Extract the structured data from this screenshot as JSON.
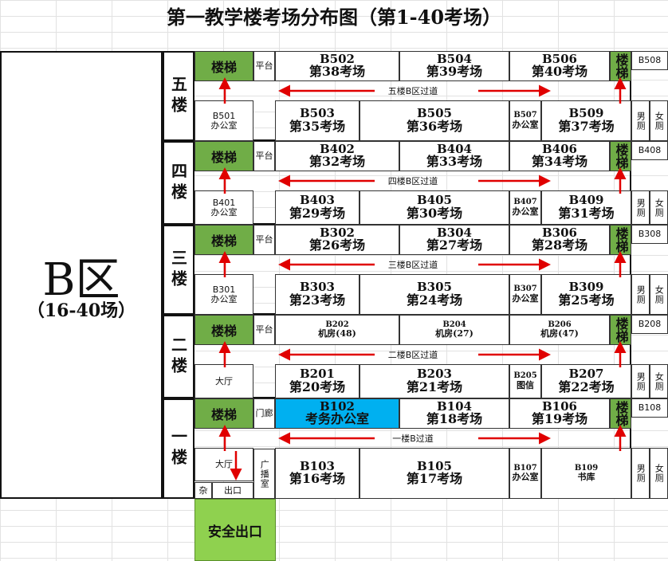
{
  "title": "第一教学楼考场分布图（第1-40考场）",
  "zone": {
    "name": "B区",
    "range": "（16-40场）"
  },
  "floors": [
    {
      "label": "五楼",
      "stair": "楼梯",
      "platform": "平台",
      "north": [
        {
          "code": "B502",
          "name": "第38考场"
        },
        {
          "code": "B504",
          "name": "第39考场"
        },
        {
          "code": "B506",
          "name": "第40考场"
        }
      ],
      "east_stair": "楼梯",
      "east_room": "B508",
      "corridor": "五楼B区过道",
      "office": {
        "code": "B501",
        "name": "办公室"
      },
      "south": [
        {
          "code": "B503",
          "name": "第35考场"
        },
        {
          "code": "B505",
          "name": "第36考场"
        }
      ],
      "small": {
        "code": "B507",
        "name": "办公室"
      },
      "south_last": {
        "code": "B509",
        "name": "第37考场"
      },
      "wc_m": "男厕",
      "wc_f": "女厕"
    },
    {
      "label": "四楼",
      "stair": "楼梯",
      "platform": "平台",
      "north": [
        {
          "code": "B402",
          "name": "第32考场"
        },
        {
          "code": "B404",
          "name": "第33考场"
        },
        {
          "code": "B406",
          "name": "第34考场"
        }
      ],
      "east_stair": "楼梯",
      "east_room": "B408",
      "corridor": "四楼B区过道",
      "office": {
        "code": "B401",
        "name": "办公室"
      },
      "south": [
        {
          "code": "B403",
          "name": "第29考场"
        },
        {
          "code": "B405",
          "name": "第30考场"
        }
      ],
      "small": {
        "code": "B407",
        "name": "办公室"
      },
      "south_last": {
        "code": "B409",
        "name": "第31考场"
      },
      "wc_m": "男厕",
      "wc_f": "女厕"
    },
    {
      "label": "三楼",
      "stair": "楼梯",
      "platform": "平台",
      "north": [
        {
          "code": "B302",
          "name": "第26考场"
        },
        {
          "code": "B304",
          "name": "第27考场"
        },
        {
          "code": "B306",
          "name": "第28考场"
        }
      ],
      "east_stair": "楼梯",
      "east_room": "B308",
      "corridor": "三楼B区过道",
      "office": {
        "code": "B301",
        "name": "办公室"
      },
      "south": [
        {
          "code": "B303",
          "name": "第23考场"
        },
        {
          "code": "B305",
          "name": "第24考场"
        }
      ],
      "small": {
        "code": "B307",
        "name": "办公室"
      },
      "south_last": {
        "code": "B309",
        "name": "第25考场"
      },
      "wc_m": "男厕",
      "wc_f": "女厕"
    },
    {
      "label": "二楼",
      "stair": "楼梯",
      "platform": "平台",
      "north": [
        {
          "code": "B202",
          "name": "机房(48)"
        },
        {
          "code": "B204",
          "name": "机房(27)"
        },
        {
          "code": "B206",
          "name": "机房(47)"
        }
      ],
      "east_stair": "楼梯",
      "east_room": "B208",
      "corridor": "二楼B区过道",
      "office": {
        "code": "",
        "name": "大厅"
      },
      "south": [
        {
          "code": "B201",
          "name": "第20考场"
        },
        {
          "code": "B203",
          "name": "第21考场"
        }
      ],
      "small": {
        "code": "B205",
        "name": "图信"
      },
      "south_last": {
        "code": "B207",
        "name": "第22考场"
      },
      "wc_m": "男厕",
      "wc_f": "女厕"
    },
    {
      "label": "一楼",
      "stair": "楼梯",
      "platform": "门廊",
      "north": [
        {
          "code": "B102",
          "name": "考务办公室"
        },
        {
          "code": "B104",
          "name": "第18考场"
        },
        {
          "code": "B106",
          "name": "第19考场"
        }
      ],
      "east_stair": "楼梯",
      "east_room": "B108",
      "corridor": "一楼B过道",
      "office": {
        "code": "",
        "name": "大厅"
      },
      "south": [
        {
          "code": "B103",
          "name": "第16考场"
        },
        {
          "code": "B105",
          "name": "第17考场"
        }
      ],
      "small": {
        "code": "B107",
        "name": "办公室"
      },
      "south_last": {
        "code": "B109",
        "name": "书库"
      },
      "wc_m": "男厕",
      "wc_f": "女厕"
    }
  ],
  "ground": {
    "misc": "杂",
    "exit": "出口",
    "broadcast": "广播室",
    "safe_exit": "安全出口"
  },
  "colors": {
    "stair_green": "#70ad47",
    "highlight_blue": "#00b0f0",
    "exit_green": "#8fd14f",
    "arrow_red": "#e00000"
  }
}
